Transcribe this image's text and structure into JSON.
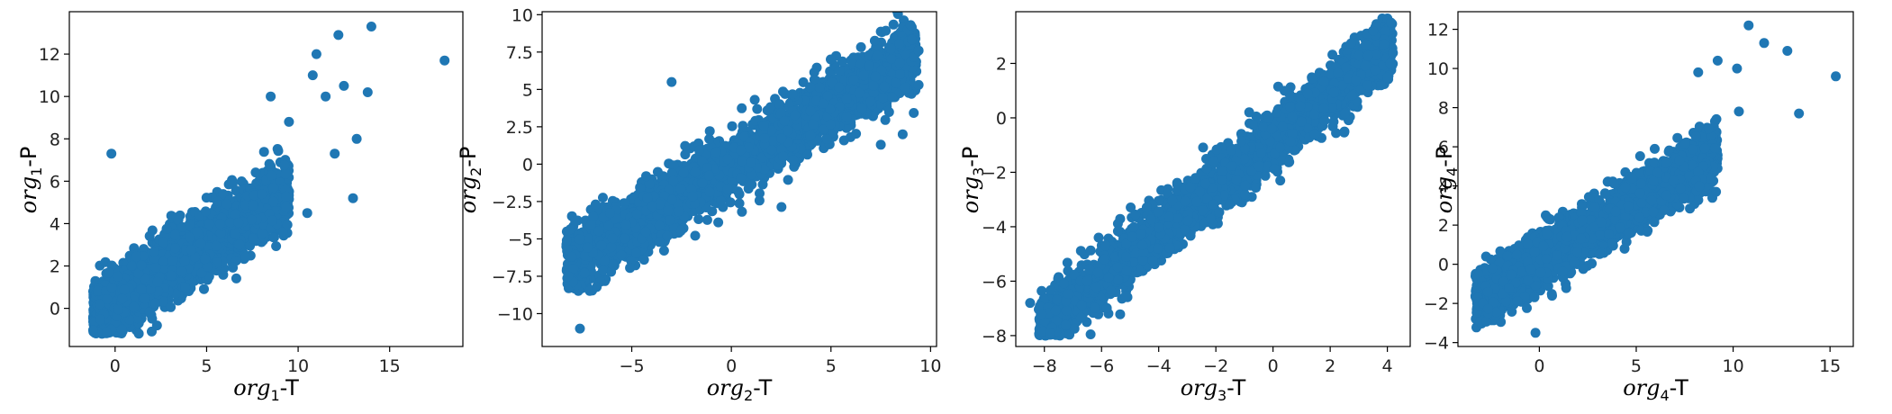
{
  "chart_data": [
    {
      "type": "scatter",
      "color": "#1f77b4",
      "xlabel": {
        "var": "org",
        "sub": "1",
        "suffix": "-T"
      },
      "ylabel": {
        "var": "org",
        "sub": "1",
        "suffix": "-P"
      },
      "xlim": [
        -2.5,
        19
      ],
      "ylim": [
        -1.8,
        14
      ],
      "xticks": [
        0,
        5,
        10,
        15
      ],
      "yticks": [
        0,
        2,
        4,
        6,
        8,
        10,
        12
      ],
      "cloud": {
        "x_range": [
          -1.2,
          9.5
        ],
        "slope": 0.55,
        "intercept": 0.3,
        "spread": 1.4,
        "y_min": -1.2
      },
      "outliers": [
        [
          18,
          11.7
        ],
        [
          14,
          13.3
        ],
        [
          12.2,
          12.9
        ],
        [
          13.8,
          10.2
        ],
        [
          11,
          12.0
        ],
        [
          10.8,
          11.0
        ],
        [
          12.5,
          10.5
        ],
        [
          11.5,
          10.0
        ],
        [
          13.2,
          8.0
        ],
        [
          13,
          5.2
        ],
        [
          10.5,
          4.5
        ],
        [
          -0.2,
          7.3
        ],
        [
          12,
          7.3
        ],
        [
          9.5,
          8.8
        ],
        [
          8.5,
          10.0
        ]
      ]
    },
    {
      "type": "scatter",
      "color": "#1f77b4",
      "xlabel": {
        "var": "org",
        "sub": "2",
        "suffix": "-T"
      },
      "ylabel": {
        "var": "org",
        "sub": "2",
        "suffix": "-P"
      },
      "xlim": [
        -9.5,
        10.3
      ],
      "ylim": [
        -12.2,
        10.2
      ],
      "xticks": [
        -5,
        0,
        5,
        10
      ],
      "yticks": [
        -10.0,
        -7.5,
        -5.0,
        -2.5,
        0.0,
        2.5,
        5.0,
        7.5,
        10.0
      ],
      "cloud": {
        "x_range": [
          -8.3,
          9.3
        ],
        "slope": 0.8,
        "intercept": 0.0,
        "spread": 2.0,
        "y_min": -8.5
      },
      "outliers": [
        [
          -7.6,
          -11.0
        ],
        [
          -8.2,
          -7.5
        ],
        [
          -8.0,
          -6.2
        ],
        [
          9.0,
          9.3
        ],
        [
          9.4,
          7.6
        ],
        [
          -3,
          5.5
        ],
        [
          7.5,
          1.3
        ],
        [
          8.6,
          2.0
        ],
        [
          9.4,
          5.3
        ]
      ]
    },
    {
      "type": "scatter",
      "color": "#1f77b4",
      "xlabel": {
        "var": "org",
        "sub": "3",
        "suffix": "-T"
      },
      "ylabel": {
        "var": "org",
        "sub": "3",
        "suffix": "-P"
      },
      "xlim": [
        -9.0,
        4.8
      ],
      "ylim": [
        -8.4,
        3.9
      ],
      "xticks": [
        -8,
        -6,
        -4,
        -2,
        0,
        2,
        4
      ],
      "yticks": [
        -8,
        -6,
        -4,
        -2,
        0,
        2
      ],
      "cloud": {
        "x_range": [
          -8.2,
          4.2
        ],
        "slope": 0.85,
        "intercept": -0.8,
        "spread": 1.0,
        "y_min": -8.0
      },
      "outliers": [
        [
          -8.5,
          -6.8
        ],
        [
          -7.8,
          -7.9
        ],
        [
          -8.1,
          -7.2
        ],
        [
          -6.1,
          -4.4
        ],
        [
          -6.5,
          -6.0
        ],
        [
          4.1,
          2.0
        ],
        [
          3.5,
          3.2
        ],
        [
          1.8,
          -0.1
        ],
        [
          2.5,
          -0.5
        ]
      ]
    },
    {
      "type": "scatter",
      "color": "#1f77b4",
      "xlabel": {
        "var": "org",
        "sub": "4",
        "suffix": "-T"
      },
      "ylabel": {
        "var": "org",
        "sub": "4",
        "suffix": "-P"
      },
      "xlim": [
        -4.2,
        16.2
      ],
      "ylim": [
        -4.2,
        12.9
      ],
      "xticks": [
        0,
        5,
        10,
        15
      ],
      "yticks": [
        -4,
        -2,
        0,
        2,
        4,
        6,
        8,
        10,
        12
      ],
      "cloud": {
        "x_range": [
          -3.3,
          9.2
        ],
        "slope": 0.6,
        "intercept": 0.2,
        "spread": 1.3,
        "y_min": -3.4
      },
      "outliers": [
        [
          10.8,
          12.2
        ],
        [
          12.8,
          10.9
        ],
        [
          15.3,
          9.6
        ],
        [
          13.4,
          7.7
        ],
        [
          11.6,
          11.3
        ],
        [
          10.2,
          10.0
        ],
        [
          9.2,
          10.4
        ],
        [
          -0.2,
          -3.5
        ],
        [
          10.3,
          7.8
        ],
        [
          8.2,
          9.8
        ]
      ]
    }
  ]
}
